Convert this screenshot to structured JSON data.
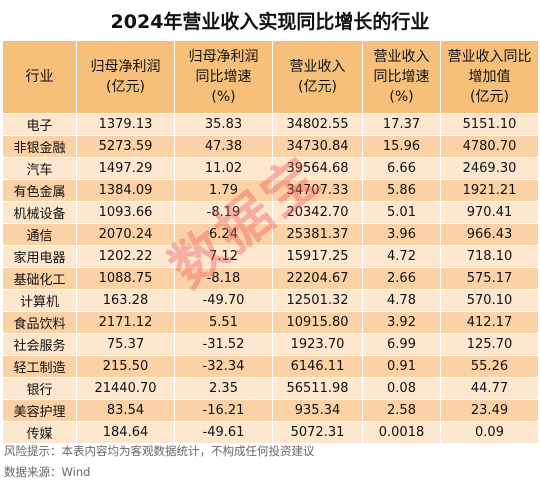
{
  "title": "2024年营业收入实现同比增长的行业",
  "headers": [
    "行业",
    "归母净利润\n(亿元)",
    "归母净利润\n同比增速\n(%)",
    "营业收入\n(亿元)",
    "营业收入\n同比增速\n(%)",
    "营业收入同比\n增加值\n(亿元)"
  ],
  "rows": [
    [
      "电子",
      "1379.13",
      "35.83",
      "34802.55",
      "17.37",
      "5151.10"
    ],
    [
      "非银金融",
      "5273.59",
      "47.38",
      "34730.84",
      "15.96",
      "4780.70"
    ],
    [
      "汽车",
      "1497.29",
      "11.02",
      "39564.68",
      "6.66",
      "2469.30"
    ],
    [
      "有色金属",
      "1384.09",
      "1.79",
      "34707.33",
      "5.86",
      "1921.21"
    ],
    [
      "机械设备",
      "1093.66",
      "-8.19",
      "20342.70",
      "5.01",
      "970.41"
    ],
    [
      "通信",
      "2070.24",
      "6.24",
      "25381.37",
      "3.96",
      "966.43"
    ],
    [
      "家用电器",
      "1202.22",
      "7.12",
      "15917.25",
      "4.72",
      "718.10"
    ],
    [
      "基础化工",
      "1088.75",
      "-8.18",
      "22204.67",
      "2.66",
      "575.17"
    ],
    [
      "计算机",
      "163.28",
      "-49.70",
      "12501.32",
      "4.78",
      "570.10"
    ],
    [
      "食品饮料",
      "2171.12",
      "5.51",
      "10915.80",
      "3.92",
      "412.17"
    ],
    [
      "社会服务",
      "75.37",
      "-31.52",
      "1923.70",
      "6.99",
      "125.70"
    ],
    [
      "轻工制造",
      "215.50",
      "-32.34",
      "6146.11",
      "0.91",
      "55.26"
    ],
    [
      "银行",
      "21440.70",
      "2.35",
      "56511.98",
      "0.08",
      "44.77"
    ],
    [
      "美容护理",
      "83.54",
      "-16.21",
      "935.34",
      "2.58",
      "23.49"
    ],
    [
      "传媒",
      "184.64",
      "-49.61",
      "5072.31",
      "0.0018",
      "0.09"
    ]
  ],
  "footer": {
    "risk": "风险提示：本表内容均为客观数据统计，不构成任何投资建议",
    "source": "数据来源：Wind"
  },
  "watermark": "数据宝",
  "colors": {
    "header_bg": "#f6c07b",
    "row_light": "#fde7cf",
    "row_dark": "#fbd2a6"
  }
}
